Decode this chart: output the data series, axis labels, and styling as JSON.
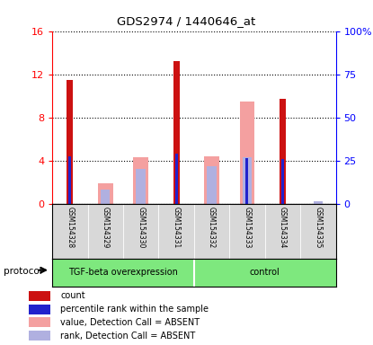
{
  "title": "GDS2974 / 1440646_at",
  "samples": [
    "GSM154328",
    "GSM154329",
    "GSM154330",
    "GSM154331",
    "GSM154332",
    "GSM154333",
    "GSM154334",
    "GSM154335"
  ],
  "group_labels": [
    "TGF-beta overexpression",
    "control"
  ],
  "group_spans": [
    4,
    4
  ],
  "count_values": [
    11.5,
    0,
    0,
    13.2,
    0,
    0,
    9.7,
    0
  ],
  "percentile_values": [
    4.4,
    0,
    0,
    4.6,
    0,
    4.2,
    4.1,
    0
  ],
  "absent_value_values": [
    0,
    1.9,
    4.3,
    0,
    4.4,
    9.5,
    0,
    0
  ],
  "absent_rank_values": [
    0,
    1.3,
    3.2,
    0,
    3.5,
    4.3,
    0,
    0.2
  ],
  "left_ylim": [
    0,
    16
  ],
  "left_yticks": [
    0,
    4,
    8,
    12,
    16
  ],
  "right_ylim": [
    0,
    100
  ],
  "right_yticks": [
    0,
    25,
    50,
    75,
    100
  ],
  "right_yticklabels": [
    "0",
    "25",
    "50",
    "75",
    "100%"
  ],
  "bar_width": 0.35,
  "color_count": "#cc1111",
  "color_percentile": "#2222cc",
  "color_absent_value": "#f4a0a0",
  "color_absent_rank": "#b0b0e0",
  "color_sample_bg": "#d8d8d8",
  "color_group_bg": "#7ee87e",
  "grid_linestyle": ":",
  "grid_linewidth": 0.8,
  "grid_color": "black",
  "legend_items": [
    {
      "color": "#cc1111",
      "label": "count"
    },
    {
      "color": "#2222cc",
      "label": "percentile rank within the sample"
    },
    {
      "color": "#f4a0a0",
      "label": "value, Detection Call = ABSENT"
    },
    {
      "color": "#b0b0e0",
      "label": "rank, Detection Call = ABSENT"
    }
  ]
}
